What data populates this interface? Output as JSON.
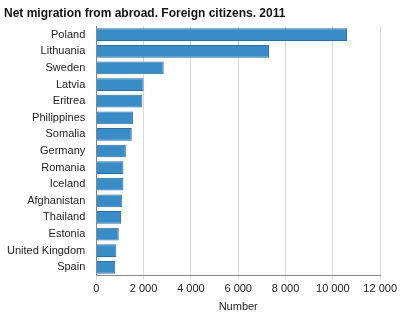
{
  "chart_data": {
    "type": "bar",
    "orientation": "horizontal",
    "title": "Net migration from abroad. Foreign citizens. 2011",
    "x_label": "Number",
    "categories": [
      "Poland",
      "Lithuania",
      "Sweden",
      "Latvia",
      "Eritrea",
      "Philippines",
      "Somalia",
      "Germany",
      "Romania",
      "Iceland",
      "Afghanistan",
      "Thailand",
      "Estonia",
      "United Kingdom",
      "Spain"
    ],
    "values": [
      10600,
      7300,
      2850,
      2000,
      1950,
      1550,
      1500,
      1250,
      1150,
      1150,
      1100,
      1050,
      950,
      850,
      800
    ],
    "color": "#3a8cc6",
    "xlim": [
      0,
      12000
    ],
    "xticks": [
      0,
      {
        "value": 2000,
        "label": "2 000"
      },
      {
        "value": 4000,
        "label": "4 000"
      },
      {
        "value": 6000,
        "label": "6 000"
      },
      {
        "value": 8000,
        "label": "8 000"
      },
      {
        "value": 10000,
        "label": "10 000"
      },
      {
        "value": 12000,
        "label": "12 000"
      }
    ],
    "grid": true
  }
}
